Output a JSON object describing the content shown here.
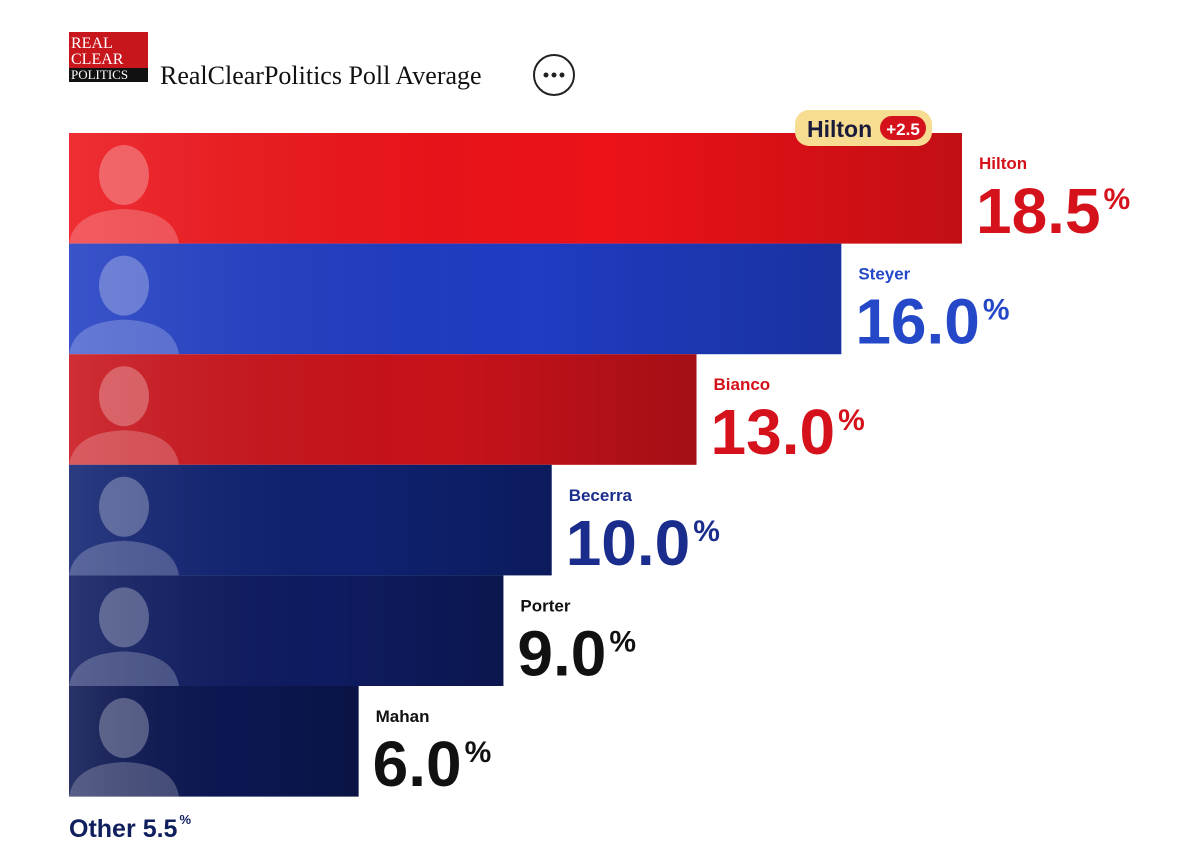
{
  "header": {
    "logo": [
      "REAL",
      "CLEAR",
      "POLITICS"
    ],
    "title": "RealClearPolitics Poll Average"
  },
  "chart_data": {
    "type": "hbar",
    "categories": [
      "Hilton",
      "Steyer",
      "Bianco",
      "Becerra",
      "Porter",
      "Mahan"
    ],
    "values": [
      18.5,
      16.0,
      13.0,
      10.0,
      9.0,
      6.0
    ],
    "value_labels": [
      "18.5",
      "16.0",
      "13.0",
      "10.0",
      "9.0",
      "6.0"
    ],
    "unit": "%",
    "colors": [
      "#ec1218",
      "#1f3cc2",
      "#c8121a",
      "#0f2170",
      "#0e1b60",
      "#0c1752"
    ],
    "label_colors": [
      "#d5121b",
      "#2548c9",
      "#d5121b",
      "#1b2d8c",
      "#111111",
      "#111111"
    ],
    "lead": {
      "name": "Hilton",
      "value": 2.5,
      "label": "+2.5"
    },
    "other": {
      "label": "Other",
      "value": 5.5,
      "value_label": "5.5"
    }
  }
}
